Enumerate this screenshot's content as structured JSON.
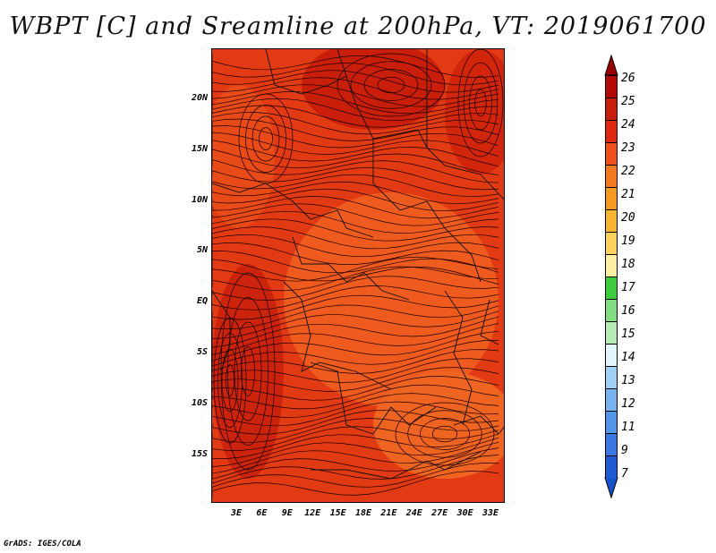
{
  "title": "WBPT [C] and Sreamline at 200hPa, VT: 2019061700",
  "credit": "GrADS: IGES/COLA",
  "map": {
    "y_labels": [
      "20N",
      "15N",
      "10N",
      "5N",
      "EQ",
      "5S",
      "10S",
      "15S"
    ],
    "x_labels": [
      "3E",
      "6E",
      "9E",
      "12E",
      "15E",
      "18E",
      "21E",
      "24E",
      "27E",
      "30E",
      "33E"
    ],
    "fill_colors": {
      "base": "#e23a12",
      "dark": "#c81e0a",
      "light": "#ef5a1e"
    }
  },
  "colorbar": {
    "labels": [
      "26",
      "25",
      "24",
      "23",
      "22",
      "21",
      "20",
      "19",
      "18",
      "17",
      "16",
      "15",
      "14",
      "13",
      "12",
      "11",
      "9",
      "7"
    ],
    "colors": [
      "#b40c05",
      "#c81e0a",
      "#e02810",
      "#f0501a",
      "#f57a1e",
      "#f89a20",
      "#fab432",
      "#fcd25a",
      "#fdf0a0",
      "#3ccd3c",
      "#82dc82",
      "#b4ecb4",
      "#e1f5fa",
      "#a0d2f5",
      "#78b4f0",
      "#5096eb",
      "#3c78e1",
      "#1e5ad2"
    ],
    "top_arrow_color": "#960000",
    "bottom_arrow_color": "#1450c8"
  }
}
